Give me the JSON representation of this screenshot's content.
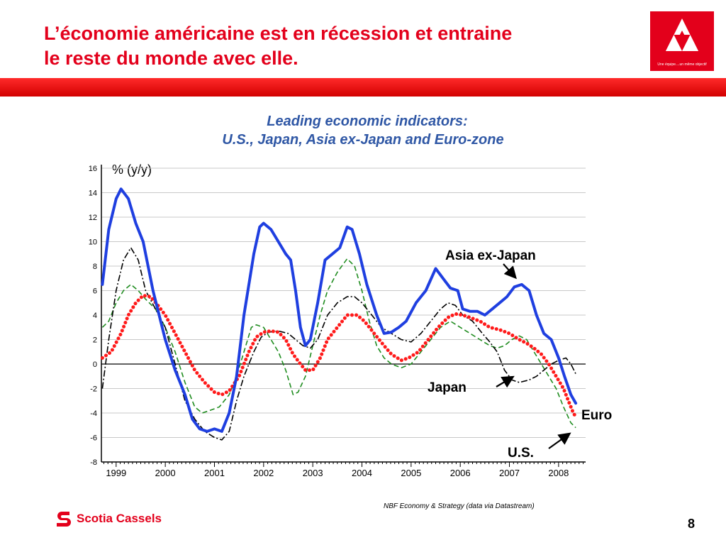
{
  "slide": {
    "title_line1": "L’économie américaine est en récession et entraine",
    "title_line2": "le reste du monde avec elle.",
    "logo_tagline": "Une équipe....un même objectif",
    "footer_brand": "Scotia Cassels",
    "page_number": "8"
  },
  "colors": {
    "brand_red": "#e3001b",
    "title_blue": "#2f57a5",
    "asia": "#1f3fe0",
    "japan": "#000000",
    "euro": "#ff1a1a",
    "us": "#1f8c1f"
  },
  "chart_data": {
    "type": "line",
    "title_line1": "Leading economic indicators:",
    "title_line2": "U.S., Japan, Asia ex-Japan and Euro-zone",
    "ylabel": "% (y/y)",
    "source": "NBF Economy & Strategy (data via Datastream)",
    "x_range": [
      1998.7,
      2008.55
    ],
    "ylim": [
      -8,
      16
    ],
    "yticks": [
      16,
      14,
      12,
      10,
      8,
      6,
      4,
      2,
      0,
      -2,
      -4,
      -6,
      -8
    ],
    "xtick_labels": [
      "1999",
      "2000",
      "2001",
      "2002",
      "2003",
      "2004",
      "2005",
      "2006",
      "2007",
      "2008"
    ],
    "xtick_positions": [
      1999,
      2000,
      2001,
      2002,
      2003,
      2004,
      2005,
      2006,
      2007,
      2008
    ],
    "grid": true,
    "series": [
      {
        "name": "Asia ex-Japan",
        "color_key": "asia",
        "style": "solid-thick",
        "points": [
          [
            1998.72,
            6.5
          ],
          [
            1998.85,
            11
          ],
          [
            1999.0,
            13.5
          ],
          [
            1999.1,
            14.3
          ],
          [
            1999.25,
            13.5
          ],
          [
            1999.4,
            11.5
          ],
          [
            1999.55,
            10
          ],
          [
            1999.75,
            6
          ],
          [
            2000.0,
            2
          ],
          [
            2000.2,
            -0.5
          ],
          [
            2000.4,
            -2.5
          ],
          [
            2000.55,
            -4.5
          ],
          [
            2000.7,
            -5.3
          ],
          [
            2000.85,
            -5.5
          ],
          [
            2001.0,
            -5.3
          ],
          [
            2001.15,
            -5.5
          ],
          [
            2001.3,
            -4
          ],
          [
            2001.45,
            -1
          ],
          [
            2001.6,
            4
          ],
          [
            2001.8,
            9
          ],
          [
            2001.92,
            11.2
          ],
          [
            2002.0,
            11.5
          ],
          [
            2002.15,
            11
          ],
          [
            2002.3,
            10
          ],
          [
            2002.45,
            9
          ],
          [
            2002.55,
            8.5
          ],
          [
            2002.65,
            6
          ],
          [
            2002.75,
            3
          ],
          [
            2002.85,
            1.5
          ],
          [
            2002.95,
            2
          ],
          [
            2003.1,
            5
          ],
          [
            2003.25,
            8.5
          ],
          [
            2003.4,
            9
          ],
          [
            2003.55,
            9.5
          ],
          [
            2003.7,
            11.2
          ],
          [
            2003.8,
            11
          ],
          [
            2003.95,
            9
          ],
          [
            2004.1,
            6.5
          ],
          [
            2004.3,
            4
          ],
          [
            2004.45,
            2.5
          ],
          [
            2004.6,
            2.6
          ],
          [
            2004.75,
            3
          ],
          [
            2004.9,
            3.5
          ],
          [
            2005.1,
            5
          ],
          [
            2005.3,
            6
          ],
          [
            2005.5,
            7.8
          ],
          [
            2005.65,
            7
          ],
          [
            2005.8,
            6.2
          ],
          [
            2005.95,
            6
          ],
          [
            2006.05,
            4.5
          ],
          [
            2006.2,
            4.3
          ],
          [
            2006.35,
            4.3
          ],
          [
            2006.5,
            4
          ],
          [
            2006.65,
            4.5
          ],
          [
            2006.8,
            5
          ],
          [
            2006.95,
            5.5
          ],
          [
            2007.1,
            6.3
          ],
          [
            2007.25,
            6.5
          ],
          [
            2007.4,
            6
          ],
          [
            2007.55,
            4
          ],
          [
            2007.7,
            2.5
          ],
          [
            2007.85,
            2
          ],
          [
            2008.0,
            0.5
          ],
          [
            2008.12,
            -1
          ],
          [
            2008.25,
            -2.5
          ],
          [
            2008.35,
            -3.2
          ]
        ]
      },
      {
        "name": "Japan",
        "color_key": "japan",
        "style": "dash-dot",
        "points": [
          [
            1998.72,
            -2
          ],
          [
            1998.85,
            2
          ],
          [
            1999.0,
            6
          ],
          [
            1999.15,
            8.5
          ],
          [
            1999.3,
            9.5
          ],
          [
            1999.45,
            8.5
          ],
          [
            1999.6,
            6
          ],
          [
            1999.8,
            4.5
          ],
          [
            2000.0,
            3
          ],
          [
            2000.2,
            0
          ],
          [
            2000.4,
            -3
          ],
          [
            2000.6,
            -4.5
          ],
          [
            2000.8,
            -5.5
          ],
          [
            2001.0,
            -6
          ],
          [
            2001.15,
            -6.2
          ],
          [
            2001.3,
            -5.5
          ],
          [
            2001.45,
            -3
          ],
          [
            2001.6,
            -1
          ],
          [
            2001.8,
            1
          ],
          [
            2001.95,
            2.2
          ],
          [
            2002.1,
            2.6
          ],
          [
            2002.3,
            2.7
          ],
          [
            2002.5,
            2.5
          ],
          [
            2002.65,
            2
          ],
          [
            2002.8,
            1.5
          ],
          [
            2002.95,
            1.3
          ],
          [
            2003.1,
            2
          ],
          [
            2003.3,
            4
          ],
          [
            2003.5,
            5
          ],
          [
            2003.7,
            5.5
          ],
          [
            2003.85,
            5.5
          ],
          [
            2004.0,
            5
          ],
          [
            2004.2,
            4
          ],
          [
            2004.4,
            3
          ],
          [
            2004.6,
            2.5
          ],
          [
            2004.8,
            2
          ],
          [
            2005.0,
            1.8
          ],
          [
            2005.2,
            2.5
          ],
          [
            2005.4,
            3.5
          ],
          [
            2005.6,
            4.5
          ],
          [
            2005.75,
            5
          ],
          [
            2005.9,
            4.8
          ],
          [
            2006.05,
            4
          ],
          [
            2006.25,
            3.5
          ],
          [
            2006.45,
            2.5
          ],
          [
            2006.6,
            1.8
          ],
          [
            2006.75,
            1
          ],
          [
            2006.9,
            -0.5
          ],
          [
            2007.05,
            -1.3
          ],
          [
            2007.2,
            -1.5
          ],
          [
            2007.4,
            -1.3
          ],
          [
            2007.55,
            -1
          ],
          [
            2007.7,
            -0.5
          ],
          [
            2007.85,
            0
          ],
          [
            2008.0,
            0.3
          ],
          [
            2008.15,
            0.5
          ],
          [
            2008.25,
            0
          ],
          [
            2008.35,
            -0.8
          ]
        ]
      },
      {
        "name": "Euro",
        "color_key": "euro",
        "style": "dotted-thick",
        "points": [
          [
            1998.72,
            0.5
          ],
          [
            1998.9,
            1
          ],
          [
            1999.1,
            2.5
          ],
          [
            1999.25,
            4
          ],
          [
            1999.4,
            5
          ],
          [
            1999.55,
            5.6
          ],
          [
            1999.7,
            5.5
          ],
          [
            1999.85,
            4.8
          ],
          [
            2000.0,
            4
          ],
          [
            2000.2,
            2.5
          ],
          [
            2000.4,
            1
          ],
          [
            2000.6,
            -0.5
          ],
          [
            2000.8,
            -1.5
          ],
          [
            2001.0,
            -2.3
          ],
          [
            2001.15,
            -2.5
          ],
          [
            2001.3,
            -2.2
          ],
          [
            2001.5,
            -1
          ],
          [
            2001.7,
            1
          ],
          [
            2001.85,
            2.2
          ],
          [
            2002.0,
            2.6
          ],
          [
            2002.15,
            2.7
          ],
          [
            2002.3,
            2.6
          ],
          [
            2002.45,
            2
          ],
          [
            2002.6,
            0.8
          ],
          [
            2002.75,
            0
          ],
          [
            2002.85,
            -0.5
          ],
          [
            2003.0,
            -0.5
          ],
          [
            2003.15,
            0.5
          ],
          [
            2003.3,
            2
          ],
          [
            2003.5,
            3
          ],
          [
            2003.7,
            4
          ],
          [
            2003.9,
            4
          ],
          [
            2004.05,
            3.5
          ],
          [
            2004.25,
            2.5
          ],
          [
            2004.45,
            1.5
          ],
          [
            2004.6,
            0.8
          ],
          [
            2004.8,
            0.3
          ],
          [
            2004.95,
            0.5
          ],
          [
            2005.15,
            1
          ],
          [
            2005.35,
            2
          ],
          [
            2005.55,
            3
          ],
          [
            2005.75,
            3.8
          ],
          [
            2005.9,
            4.1
          ],
          [
            2006.05,
            4
          ],
          [
            2006.2,
            3.8
          ],
          [
            2006.4,
            3.5
          ],
          [
            2006.6,
            3
          ],
          [
            2006.8,
            2.8
          ],
          [
            2007.0,
            2.5
          ],
          [
            2007.2,
            2
          ],
          [
            2007.35,
            1.7
          ],
          [
            2007.5,
            1.3
          ],
          [
            2007.65,
            0.8
          ],
          [
            2007.8,
            0
          ],
          [
            2007.95,
            -1
          ],
          [
            2008.1,
            -2
          ],
          [
            2008.2,
            -3
          ],
          [
            2008.3,
            -4
          ],
          [
            2008.35,
            -4.3
          ]
        ]
      },
      {
        "name": "U.S.",
        "color_key": "us",
        "style": "dashed",
        "points": [
          [
            1998.72,
            3
          ],
          [
            1998.85,
            3.5
          ],
          [
            1999.0,
            5
          ],
          [
            1999.15,
            6
          ],
          [
            1999.3,
            6.5
          ],
          [
            1999.45,
            6
          ],
          [
            1999.6,
            5.3
          ],
          [
            1999.8,
            4.5
          ],
          [
            2000.0,
            3
          ],
          [
            2000.2,
            1
          ],
          [
            2000.4,
            -1.5
          ],
          [
            2000.6,
            -3.5
          ],
          [
            2000.75,
            -4
          ],
          [
            2000.9,
            -3.8
          ],
          [
            2001.1,
            -3.5
          ],
          [
            2001.3,
            -2.5
          ],
          [
            2001.45,
            -1
          ],
          [
            2001.6,
            1
          ],
          [
            2001.75,
            3
          ],
          [
            2001.85,
            3.2
          ],
          [
            2002.0,
            3
          ],
          [
            2002.15,
            2
          ],
          [
            2002.3,
            1
          ],
          [
            2002.45,
            -0.5
          ],
          [
            2002.6,
            -2.5
          ],
          [
            2002.7,
            -2.3
          ],
          [
            2002.85,
            -1
          ],
          [
            2003.0,
            1.5
          ],
          [
            2003.15,
            4
          ],
          [
            2003.3,
            6
          ],
          [
            2003.5,
            7.5
          ],
          [
            2003.7,
            8.6
          ],
          [
            2003.85,
            8
          ],
          [
            2004.0,
            6
          ],
          [
            2004.15,
            3.5
          ],
          [
            2004.3,
            1.5
          ],
          [
            2004.45,
            0.5
          ],
          [
            2004.6,
            0
          ],
          [
            2004.8,
            -0.3
          ],
          [
            2005.0,
            0
          ],
          [
            2005.2,
            1
          ],
          [
            2005.4,
            2
          ],
          [
            2005.6,
            3
          ],
          [
            2005.8,
            3.5
          ],
          [
            2006.0,
            3
          ],
          [
            2006.2,
            2.5
          ],
          [
            2006.4,
            2
          ],
          [
            2006.6,
            1.5
          ],
          [
            2006.75,
            1.3
          ],
          [
            2006.9,
            1.5
          ],
          [
            2007.05,
            2
          ],
          [
            2007.2,
            2.3
          ],
          [
            2007.35,
            2
          ],
          [
            2007.5,
            1
          ],
          [
            2007.65,
            0
          ],
          [
            2007.8,
            -1
          ],
          [
            2007.95,
            -2
          ],
          [
            2008.1,
            -3.5
          ],
          [
            2008.25,
            -4.8
          ],
          [
            2008.35,
            -5.2
          ]
        ]
      }
    ],
    "annotations": [
      {
        "text": "Asia ex-Japan",
        "series": "Asia ex-Japan",
        "anchor_x": 2007.06,
        "anchor_y": 7.9
      },
      {
        "text": "Japan",
        "series": "Japan",
        "anchor_x": 2005.66,
        "anchor_y": -2.0
      },
      {
        "text": "Euro",
        "series": "Euro",
        "anchor_x": 2008.45,
        "anchor_y": -4.3
      },
      {
        "text": "U.S.",
        "series": "U.S.",
        "anchor_x": 2007.66,
        "anchor_y": -7.0
      }
    ]
  }
}
